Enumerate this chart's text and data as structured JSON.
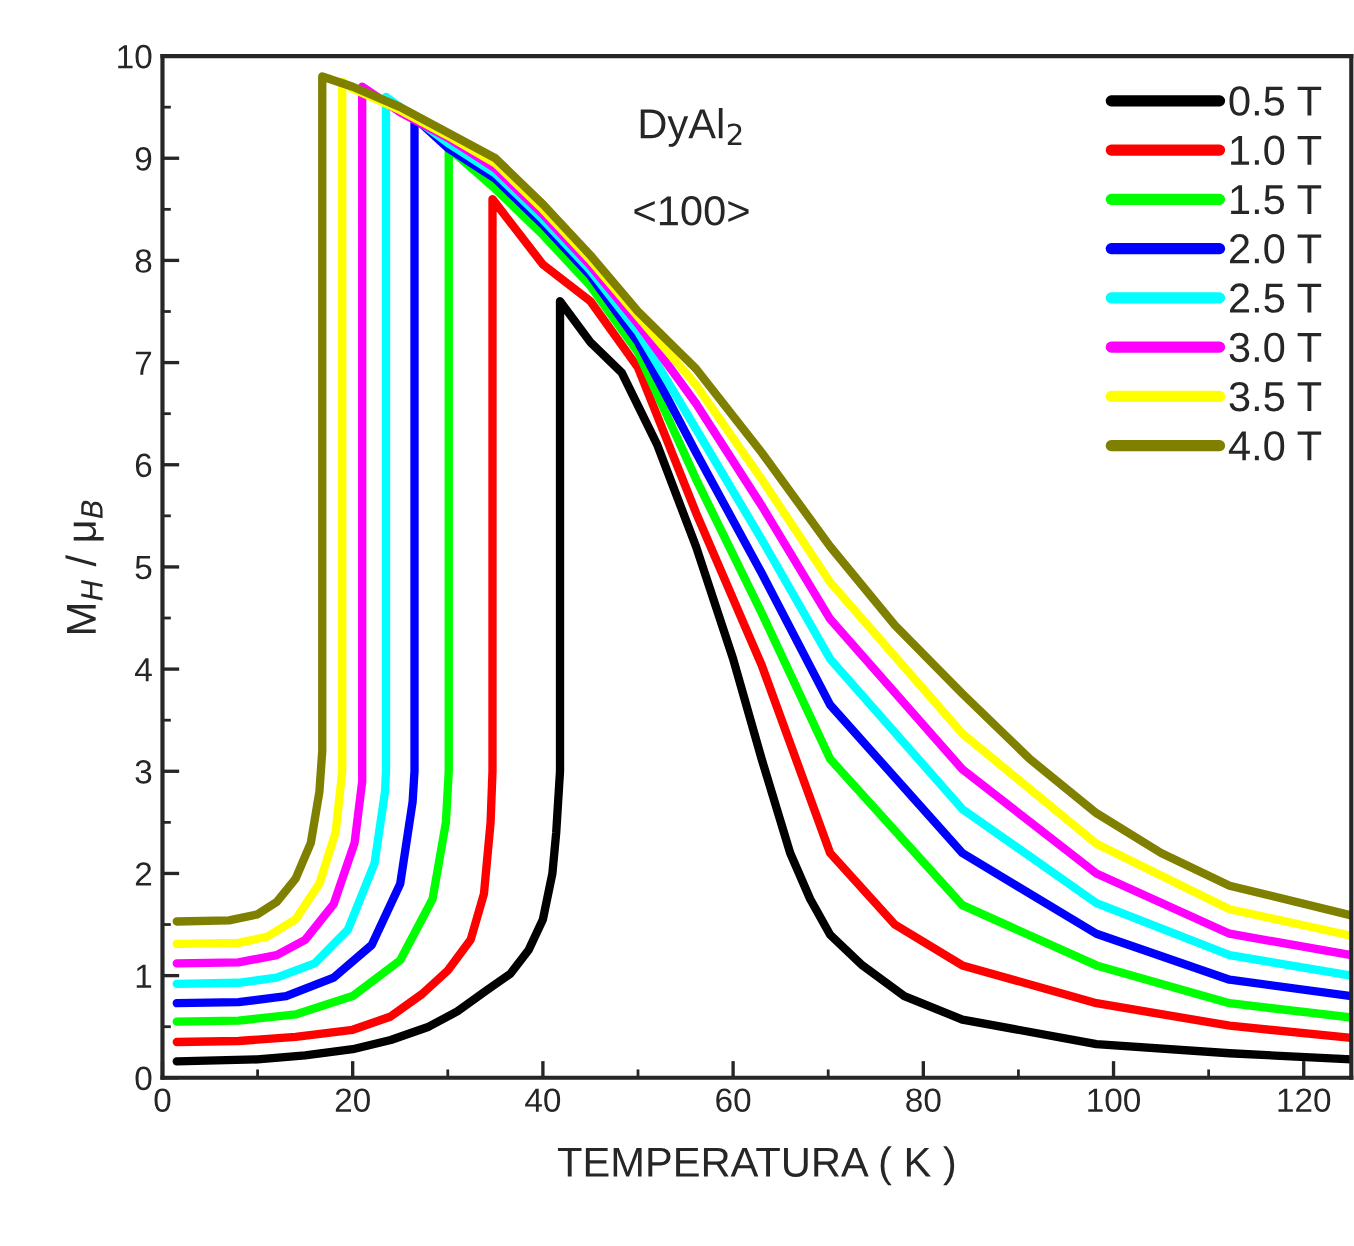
{
  "chart_data": {
    "type": "line",
    "xlabel": "TEMPERATURA ( K )",
    "ylabel": "M$_{H}$ / μ$_{B}$",
    "annotations": [
      "DyAl$_{2}$",
      "<100>"
    ],
    "xlim": [
      0,
      125
    ],
    "xticks": [
      0,
      20,
      40,
      60,
      80,
      100,
      120
    ],
    "ylim": [
      0,
      10
    ],
    "yticks": [
      0,
      1,
      2,
      3,
      4,
      5,
      6,
      7,
      8,
      9,
      10
    ],
    "grid": false,
    "legend": "top right",
    "marker": "none",
    "line_style": "solid",
    "series": [
      {
        "name": "0.5 T",
        "color": "#000000",
        "x": [
          1.5,
          10,
          15,
          20,
          24,
          28,
          31,
          34,
          36.6,
          38.5,
          40,
          41,
          41.4,
          41.8,
          41.8,
          45,
          48.3,
          52,
          56.1,
          60,
          63,
          66,
          68.1,
          70.2,
          73.6,
          78,
          84.1,
          98.2,
          112.2,
          125
        ],
        "values": [
          0.16,
          0.18,
          0.22,
          0.28,
          0.37,
          0.5,
          0.65,
          0.85,
          1.02,
          1.25,
          1.55,
          2.0,
          2.4,
          3.0,
          7.6,
          7.2,
          6.9,
          6.2,
          5.2,
          4.1,
          3.12,
          2.2,
          1.75,
          1.4,
          1.1,
          0.8,
          0.57,
          0.33,
          0.24,
          0.18
        ]
      },
      {
        "name": "1.0 T",
        "color": "#ff0000",
        "x": [
          1.5,
          8,
          14,
          20,
          24,
          27.3,
          30,
          32.4,
          33.8,
          34.5,
          34.7,
          34.7,
          40,
          45,
          50,
          56.1,
          63,
          70.2,
          77,
          84.1,
          98.2,
          112.2,
          125
        ],
        "values": [
          0.35,
          0.36,
          0.4,
          0.47,
          0.6,
          0.82,
          1.05,
          1.35,
          1.8,
          2.5,
          3.0,
          8.6,
          7.96,
          7.6,
          6.95,
          5.53,
          4.04,
          2.2,
          1.5,
          1.1,
          0.73,
          0.51,
          0.39
        ]
      },
      {
        "name": "1.5 T",
        "color": "#00ff00",
        "x": [
          1.5,
          8,
          14,
          20,
          25,
          28.4,
          29.8,
          30.1,
          30.1,
          35,
          40,
          45,
          50,
          56.1,
          63,
          70.2,
          84.1,
          98.2,
          112.2,
          125
        ],
        "values": [
          0.55,
          0.56,
          0.62,
          0.8,
          1.15,
          1.75,
          2.5,
          3.0,
          9.1,
          8.7,
          8.25,
          7.75,
          7.1,
          5.86,
          4.55,
          3.12,
          1.69,
          1.1,
          0.73,
          0.59
        ]
      },
      {
        "name": "2.0 T",
        "color": "#0000ff",
        "x": [
          1.5,
          8,
          13,
          18,
          22,
          25,
          26.3,
          26.5,
          26.5,
          30,
          35,
          40,
          45,
          50,
          56.1,
          63,
          70.2,
          84.1,
          98.2,
          112.2,
          125
        ],
        "values": [
          0.73,
          0.74,
          0.8,
          0.98,
          1.3,
          1.9,
          2.7,
          3.0,
          9.4,
          9.1,
          8.8,
          8.35,
          7.85,
          7.2,
          6.12,
          4.94,
          3.65,
          2.2,
          1.41,
          0.96,
          0.8
        ]
      },
      {
        "name": "2.5 T",
        "color": "#00ffff",
        "x": [
          1.5,
          8,
          12,
          16,
          19.5,
          22.3,
          23.4,
          23.5,
          23.5,
          25,
          30,
          35,
          40,
          45,
          50,
          56.1,
          63,
          70.2,
          84.1,
          98.2,
          112.2,
          125
        ],
        "values": [
          0.92,
          0.93,
          0.98,
          1.12,
          1.45,
          2.1,
          2.8,
          3.0,
          9.6,
          9.5,
          9.15,
          8.85,
          8.4,
          7.9,
          7.3,
          6.35,
          5.27,
          4.1,
          2.63,
          1.71,
          1.2,
          1.0
        ]
      },
      {
        "name": "3.0 T",
        "color": "#ff00ff",
        "x": [
          1.5,
          8,
          12,
          15,
          18,
          20.2,
          21.0,
          21.0,
          25,
          30,
          35,
          40,
          45,
          50,
          56.1,
          63,
          70.2,
          84.1,
          98.2,
          112.2,
          125
        ],
        "values": [
          1.12,
          1.13,
          1.2,
          1.35,
          1.7,
          2.3,
          2.9,
          9.7,
          9.45,
          9.2,
          8.9,
          8.45,
          7.95,
          7.38,
          6.6,
          5.6,
          4.49,
          3.02,
          2.0,
          1.41,
          1.2
        ]
      },
      {
        "name": "3.5 T",
        "color": "#ffff00",
        "x": [
          1.5,
          8,
          11,
          14,
          16.5,
          18.2,
          18.9,
          18.9,
          20,
          25,
          30,
          35,
          40,
          45,
          50,
          56.1,
          63,
          70.2,
          84.1,
          98.2,
          112.2,
          125
        ],
        "values": [
          1.31,
          1.32,
          1.38,
          1.55,
          1.9,
          2.4,
          3.0,
          9.75,
          9.68,
          9.47,
          9.22,
          8.95,
          8.5,
          8.0,
          7.45,
          6.78,
          5.86,
          4.85,
          3.37,
          2.29,
          1.65,
          1.39
        ]
      },
      {
        "name": "4.0 T",
        "color": "#808000",
        "x": [
          1.5,
          7,
          10,
          12,
          14,
          15.6,
          16.5,
          16.8,
          16.8,
          20,
          25,
          30,
          35,
          40,
          45,
          50,
          56.1,
          63,
          70.2,
          77,
          84.1,
          91.2,
          98.2,
          105,
          112.2,
          125
        ],
        "values": [
          1.53,
          1.54,
          1.6,
          1.72,
          1.95,
          2.3,
          2.8,
          3.2,
          9.8,
          9.7,
          9.5,
          9.25,
          9.0,
          8.55,
          8.05,
          7.5,
          6.94,
          6.12,
          5.2,
          4.43,
          3.76,
          3.12,
          2.59,
          2.2,
          1.88,
          1.59
        ]
      }
    ]
  }
}
